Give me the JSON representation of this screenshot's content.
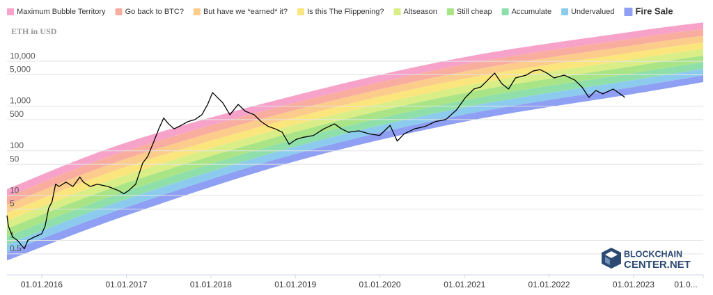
{
  "chart_data": {
    "type": "line",
    "title": "ETH in USD",
    "color": "#000000",
    "x": [
      "2015-08-04",
      "2015-08-10",
      "2015-08-28",
      "2015-09-18",
      "2015-10-03",
      "2015-10-18",
      "2015-11-02",
      "2015-12-02",
      "2016-01-01",
      "2016-01-16",
      "2016-01-31",
      "2016-02-15",
      "2016-03-01",
      "2016-03-16",
      "2016-04-15",
      "2016-05-15",
      "2016-06-14",
      "2016-06-29",
      "2016-07-29",
      "2016-08-28",
      "2016-10-13",
      "2016-11-27",
      "2016-12-21",
      "2017-01-11",
      "2017-02-10",
      "2017-03-12",
      "2017-04-03",
      "2017-04-27",
      "2017-05-21",
      "2017-06-11",
      "2017-07-02",
      "2017-07-26",
      "2017-08-25",
      "2017-09-24",
      "2017-10-24",
      "2017-11-23",
      "2017-12-18",
      "2018-01-08",
      "2018-01-29",
      "2018-02-22",
      "2018-03-24",
      "2018-04-29",
      "2018-05-29",
      "2018-07-07",
      "2018-08-06",
      "2018-09-06",
      "2018-10-06",
      "2018-11-05",
      "2018-12-05",
      "2019-01-04",
      "2019-02-03",
      "2019-03-20",
      "2019-05-04",
      "2019-06-19",
      "2019-07-19",
      "2019-08-18",
      "2019-10-02",
      "2019-11-16",
      "2019-12-31",
      "2020-02-14",
      "2020-03-16",
      "2020-04-15",
      "2020-05-30",
      "2020-07-14",
      "2020-08-28",
      "2020-10-12",
      "2020-11-27",
      "2021-01-05",
      "2021-02-10",
      "2021-03-12",
      "2021-04-11",
      "2021-05-11",
      "2021-06-10",
      "2021-07-10",
      "2021-08-09",
      "2021-09-24",
      "2021-10-24",
      "2021-11-23",
      "2021-12-23",
      "2022-01-22",
      "2022-03-08",
      "2022-04-22",
      "2022-05-23",
      "2022-06-22",
      "2022-07-22",
      "2022-08-21",
      "2022-10-05",
      "2022-11-04",
      "2022-11-25"
    ],
    "values": [
      3.6,
      2.1,
      1.2,
      1.0,
      0.81,
      0.65,
      1.0,
      1.2,
      1.4,
      2.1,
      5.2,
      7.4,
      18,
      16,
      20,
      16,
      26,
      20,
      16,
      18,
      16,
      13,
      11,
      13,
      18,
      53,
      75,
      150,
      310,
      540,
      400,
      310,
      370,
      450,
      500,
      640,
      1090,
      2000,
      1560,
      1170,
      640,
      1090,
      770,
      640,
      450,
      350,
      310,
      260,
      140,
      180,
      200,
      220,
      310,
      400,
      310,
      260,
      280,
      240,
      220,
      370,
      165,
      240,
      310,
      350,
      450,
      500,
      820,
      1560,
      2400,
      2670,
      3810,
      5450,
      3190,
      2400,
      4250,
      4900,
      6070,
      6520,
      5450,
      4250,
      4900,
      3810,
      2670,
      1560,
      2230,
      1870,
      2400,
      1870,
      1560
    ],
    "bands": [
      {
        "name": "Maximum Bubble Territory",
        "color": "#f7a3c9"
      },
      {
        "name": "Go back to BTC?",
        "color": "#f8ad9f"
      },
      {
        "name": "But have we *earned* it?",
        "color": "#fbcc8c"
      },
      {
        "name": "Is this The Flippening?",
        "color": "#fbe57d"
      },
      {
        "name": "Altseason",
        "color": "#d9ee87"
      },
      {
        "name": "Still cheap",
        "color": "#a9e486"
      },
      {
        "name": "Accumulate",
        "color": "#8fdfab"
      },
      {
        "name": "Undervalued",
        "color": "#8ccbee"
      },
      {
        "name": "Fire Sale",
        "color": "#8f9ff3"
      }
    ],
    "band_x": [
      "2015-08-04",
      "2017-01-01",
      "2019-01-01",
      "2021-01-01",
      "2023-01-01",
      "2023-10-29"
    ],
    "band_edges": [
      [
        0.355,
        3.61,
        58.5,
        448,
        1870,
        3430
      ],
      [
        0.535,
        5.48,
        85.3,
        647,
        2670,
        4820
      ],
      [
        0.804,
        8.32,
        124,
        935,
        3810,
        6780
      ],
      [
        1.21,
        12.6,
        181,
        1350,
        5450,
        9530
      ],
      [
        1.82,
        19.1,
        264,
        1960,
        7780,
        13400
      ],
      [
        2.74,
        29.0,
        385,
        2830,
        11100,
        18900
      ],
      [
        4.12,
        44.1,
        561,
        4090,
        15900,
        26500
      ],
      [
        6.21,
        66.7,
        818,
        5920,
        22800,
        37300
      ],
      [
        9.33,
        101,
        1190,
        8550,
        32500,
        52500
      ],
      [
        14.0,
        153,
        1740,
        12400,
        46400,
        73800
      ]
    ],
    "log_y": true,
    "grid": true,
    "xlim": [
      "2015-08-04",
      "2023-10-29"
    ],
    "xticks": [
      {
        "value": "2016-01-01",
        "label": "01.01.2016"
      },
      {
        "value": "2017-01-01",
        "label": "01.01.2017"
      },
      {
        "value": "2018-01-01",
        "label": "01.01.2018"
      },
      {
        "value": "2019-01-01",
        "label": "01.01.2019"
      },
      {
        "value": "2020-01-01",
        "label": "01.01.2020"
      },
      {
        "value": "2021-01-01",
        "label": "01.01.2021"
      },
      {
        "value": "2022-01-01",
        "label": "01.01.2022"
      },
      {
        "value": "2023-01-01",
        "label": "01.01.2023"
      },
      {
        "value": "2024-01-01",
        "label": "01.0..."
      }
    ],
    "ylim": [
      0.17,
      80000
    ],
    "yticks": [
      0.5,
      1,
      5,
      10,
      50,
      100,
      500,
      {
        "value": 1000,
        "label": "1,000"
      },
      {
        "value": 5000,
        "label": "5,000"
      },
      {
        "value": 10000,
        "label": "10,000"
      }
    ]
  },
  "logo": {
    "line1": "BLOCKCHAIN",
    "line2": "CENTER.NET"
  }
}
